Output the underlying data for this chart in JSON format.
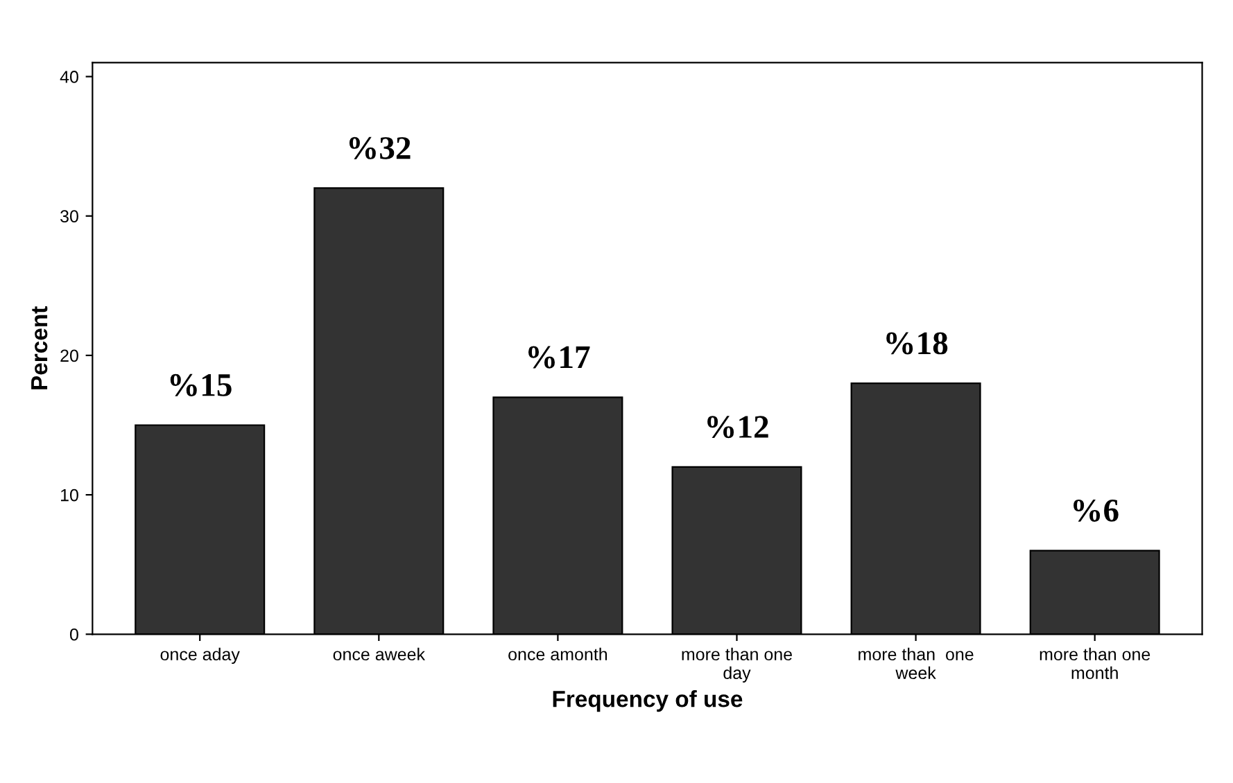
{
  "chart_data": {
    "type": "bar",
    "xlabel": "Frequency of use",
    "ylabel": "Percent",
    "categories": [
      "once aday",
      "once aweek",
      "once amonth",
      "more than one\nday",
      "more than  one\nweek",
      "more than one\nmonth"
    ],
    "values": [
      15,
      32,
      17,
      12,
      18,
      6
    ],
    "value_labels": [
      "%15",
      "%32",
      "%17",
      "%12",
      "%18",
      "%6"
    ],
    "color": "#333333",
    "ylim": [
      0,
      41
    ],
    "yticks": [
      0,
      10,
      20,
      30,
      40
    ],
    "grid": false
  }
}
